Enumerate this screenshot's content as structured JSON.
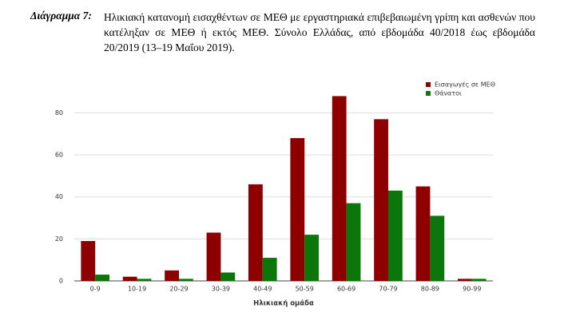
{
  "caption": {
    "label": "Διάγραμμα 7:",
    "text": "Ηλικιακή κατανομή εισαχθέντων σε ΜΕΘ με εργαστηριακά επιβεβαιωμένη γρίπη και ασθενών που κατέληξαν σε ΜΕΘ ή εκτός ΜΕΘ. Σύνολο Ελλάδας, από εβδομάδα 40/2018 έως εβδομάδα 20/2019 (13–19 Μαΐου 2019)."
  },
  "chart_data": {
    "type": "bar",
    "x_label": "Ηλικιακή ομάδα",
    "categories": [
      "0-9",
      "10-19",
      "20-29",
      "30-39",
      "40-49",
      "50-59",
      "60-69",
      "70-79",
      "80-89",
      "90-99"
    ],
    "series": [
      {
        "name": "Εισαγωγές σε ΜΕΘ",
        "color": "#8e0000",
        "values": [
          19,
          2,
          5,
          23,
          46,
          68,
          88,
          77,
          45,
          1
        ]
      },
      {
        "name": "Θάνατοι",
        "color": "#0b770b",
        "values": [
          3,
          1,
          1,
          4,
          11,
          22,
          37,
          43,
          31,
          1
        ]
      }
    ],
    "ylim": [
      0,
      95
    ],
    "yticks": [
      0,
      20,
      40,
      60,
      80
    ],
    "grid": true,
    "legend": "top-right"
  }
}
